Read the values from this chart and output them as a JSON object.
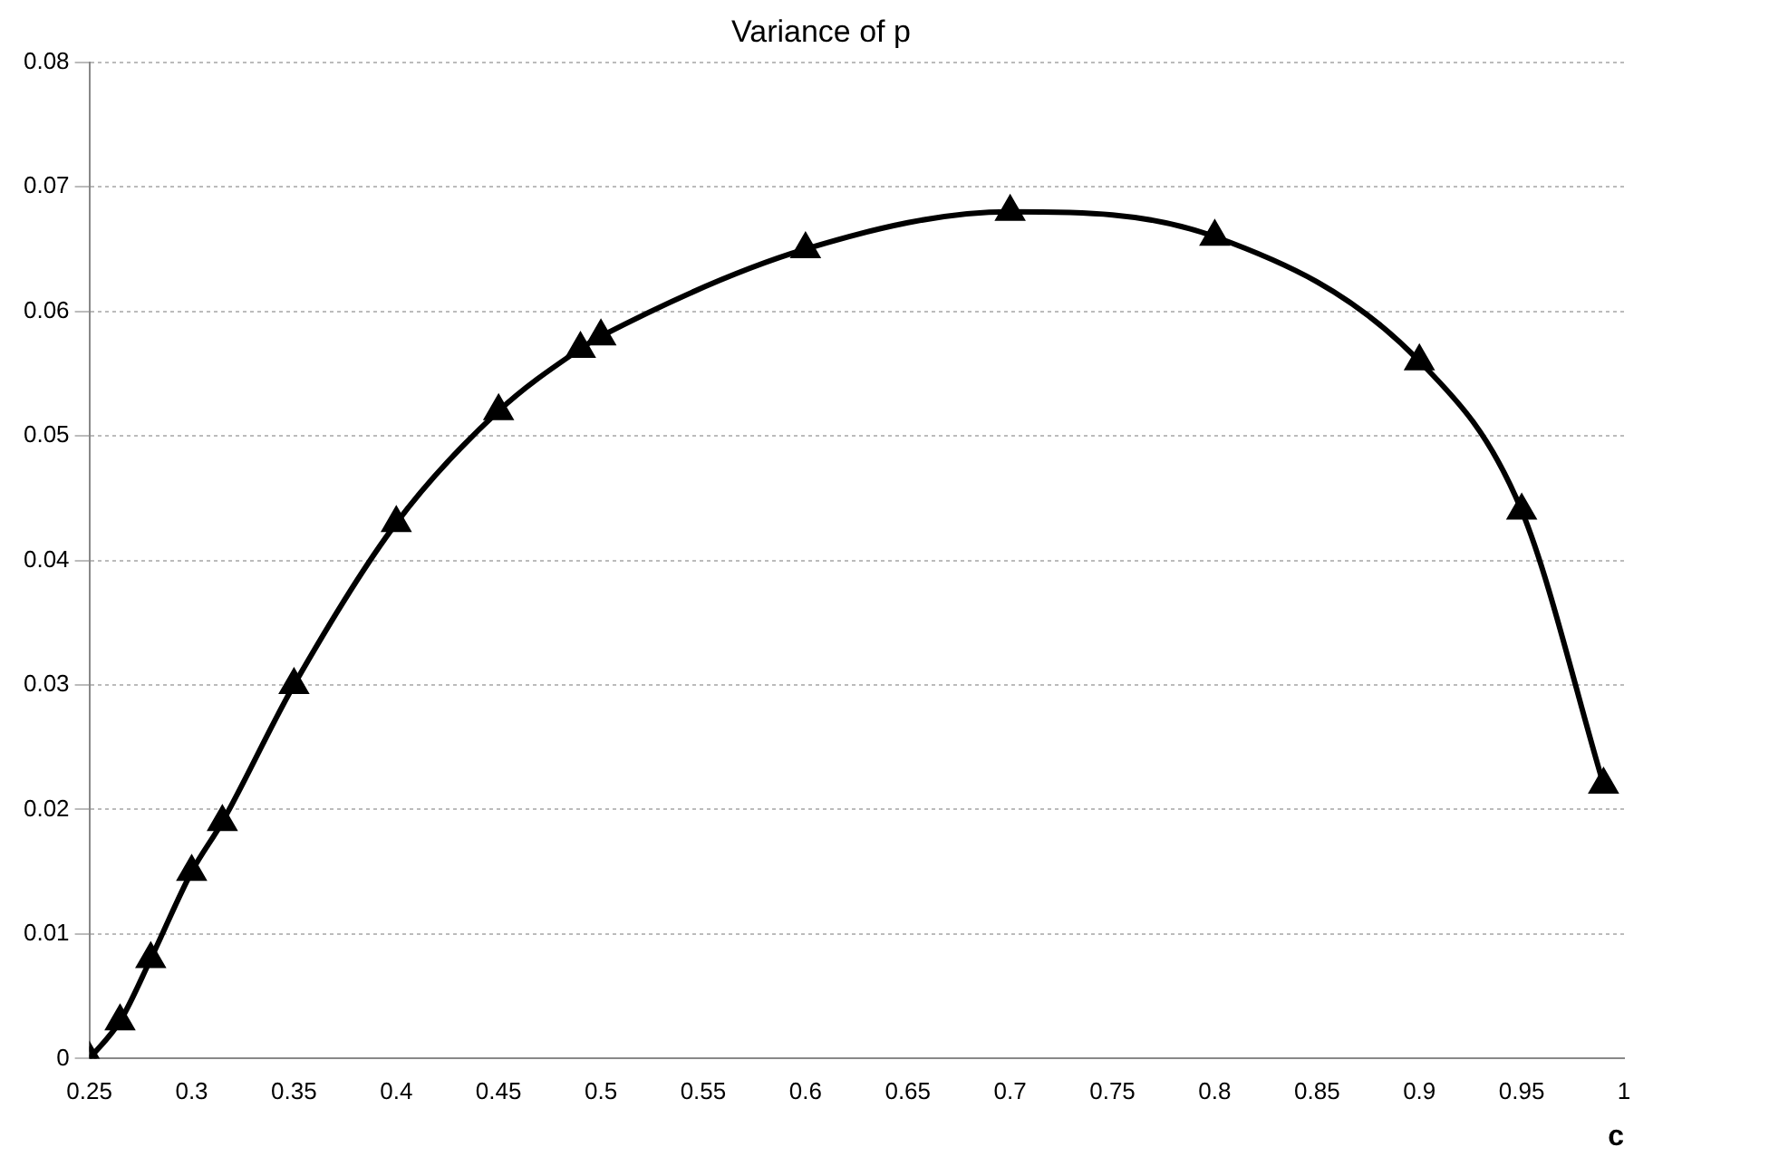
{
  "chart_data": {
    "type": "line",
    "title": "Variance of p",
    "xlabel": "c",
    "x": [
      0.25,
      0.265,
      0.28,
      0.3,
      0.315,
      0.35,
      0.4,
      0.45,
      0.49,
      0.5,
      0.6,
      0.7,
      0.8,
      0.9,
      0.95,
      0.99
    ],
    "series": [
      {
        "color": "#000000",
        "values": [
          0,
          0.003,
          0.008,
          0.015,
          0.019,
          0.03,
          0.043,
          0.052,
          0.057,
          0.058,
          0.065,
          0.068,
          0.066,
          0.056,
          0.044,
          0.022
        ]
      }
    ],
    "xlim": [
      0.25,
      1
    ],
    "xticks": [
      0.25,
      0.3,
      0.35,
      0.4,
      0.45,
      0.5,
      0.55,
      0.6,
      0.65,
      0.7,
      0.75,
      0.8,
      0.85,
      0.9,
      0.95,
      1
    ],
    "ylim": [
      0,
      0.08
    ],
    "yticks": [
      0,
      0.01,
      0.02,
      0.03,
      0.04,
      0.05,
      0.06,
      0.07,
      0.08
    ],
    "grid": "y",
    "legend": false,
    "marker": "triangle",
    "line_style": "solid"
  }
}
